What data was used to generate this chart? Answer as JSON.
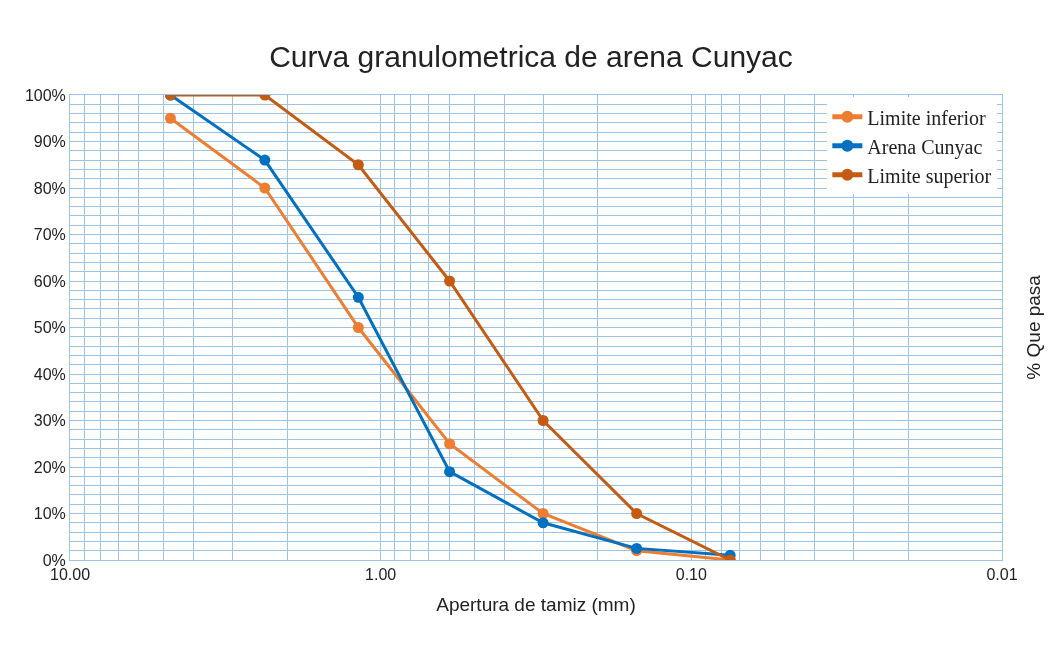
{
  "chart_data": {
    "type": "line",
    "title": "Curva granulometrica de arena Cunyac",
    "xlabel": "Apertura de tamiz (mm)",
    "ylabel": "% Que pasa",
    "x": [
      4.75,
      2.36,
      1.18,
      0.6,
      0.3,
      0.15,
      0.075
    ],
    "series": [
      {
        "name": "Limite inferior",
        "color": "#ed7d31",
        "values": [
          95,
          80,
          50,
          25,
          10,
          2,
          0
        ]
      },
      {
        "name": "Arena Cunyac",
        "color": "#0070c0",
        "values": [
          100,
          86,
          56.5,
          19,
          8,
          2.5,
          1
        ]
      },
      {
        "name": "Limite superior",
        "color": "#c55a11",
        "values": [
          100,
          100,
          85,
          60,
          30,
          10,
          0
        ]
      }
    ],
    "log": "x",
    "xlim": [
      10,
      0.01
    ],
    "xticks": [
      {
        "value": 10,
        "label": "10.00"
      },
      {
        "value": 1,
        "label": "1.00"
      },
      {
        "value": 0.1,
        "label": "0.10"
      },
      {
        "value": 0.01,
        "label": "0.01"
      }
    ],
    "ylim": [
      0,
      100
    ],
    "yticks": [
      {
        "value": 0,
        "label": "0%"
      },
      {
        "value": 10,
        "label": "10%"
      },
      {
        "value": 20,
        "label": "20%"
      },
      {
        "value": 30,
        "label": "30%"
      },
      {
        "value": 40,
        "label": "40%"
      },
      {
        "value": 50,
        "label": "50%"
      },
      {
        "value": 60,
        "label": "60%"
      },
      {
        "value": 70,
        "label": "70%"
      },
      {
        "value": 80,
        "label": "80%"
      },
      {
        "value": 90,
        "label": "90%"
      },
      {
        "value": 100,
        "label": "100%"
      }
    ],
    "grid": true,
    "legend": "top right",
    "marker": "circle",
    "line_style": "solid"
  }
}
